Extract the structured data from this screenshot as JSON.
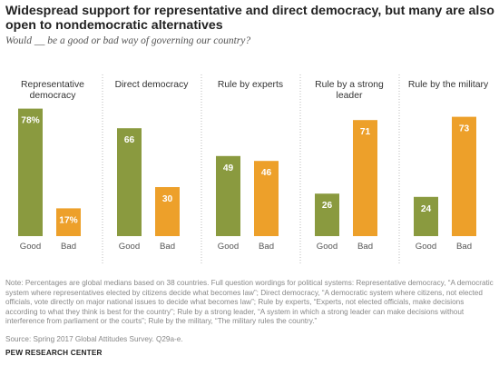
{
  "title": "Widespread support for representative and direct democracy, but many are also open to nondemocratic alternatives",
  "subtitle": "Would __ be a good or bad way of governing our country?",
  "colors": {
    "good": "#8a9a3f",
    "bad": "#eda02a",
    "divider": "#bbbbbb"
  },
  "chart_data": {
    "type": "bar",
    "categories": [
      "Good",
      "Bad"
    ],
    "ylim": [
      0,
      100
    ],
    "series_colors": [
      "#8a9a3f",
      "#eda02a"
    ],
    "panels": [
      {
        "title": [
          "Representative",
          "democracy"
        ],
        "values": [
          78,
          17
        ],
        "labels": [
          "78%",
          "17%"
        ]
      },
      {
        "title": [
          "Direct democracy"
        ],
        "values": [
          66,
          30
        ],
        "labels": [
          "66",
          "30"
        ]
      },
      {
        "title": [
          "Rule by experts"
        ],
        "values": [
          49,
          46
        ],
        "labels": [
          "49",
          "46"
        ]
      },
      {
        "title": [
          "Rule by a strong",
          "leader"
        ],
        "values": [
          26,
          71
        ],
        "labels": [
          "26",
          "71"
        ]
      },
      {
        "title": [
          "Rule by the military"
        ],
        "values": [
          24,
          73
        ],
        "labels": [
          "24",
          "73"
        ]
      }
    ]
  },
  "note": "Note: Percentages are global medians based on 38 countries. Full question wordings for political systems: Representative democracy, “A democratic system where representatives elected by citizens decide what becomes law”; Direct democracy, “A democratic system where citizens, not elected officials, vote directly on major national issues to decide what becomes law”; Rule by experts, “Experts, not elected officials, make decisions according to what they think is best for the country”; Rule by a strong leader, “A system in which a strong leader can make decisions without interference from parliament or the courts”; Rule by the military, “The military rules the country.”",
  "source": "Source: Spring 2017 Global Attitudes Survey. Q29a-e.",
  "org": "PEW RESEARCH CENTER"
}
